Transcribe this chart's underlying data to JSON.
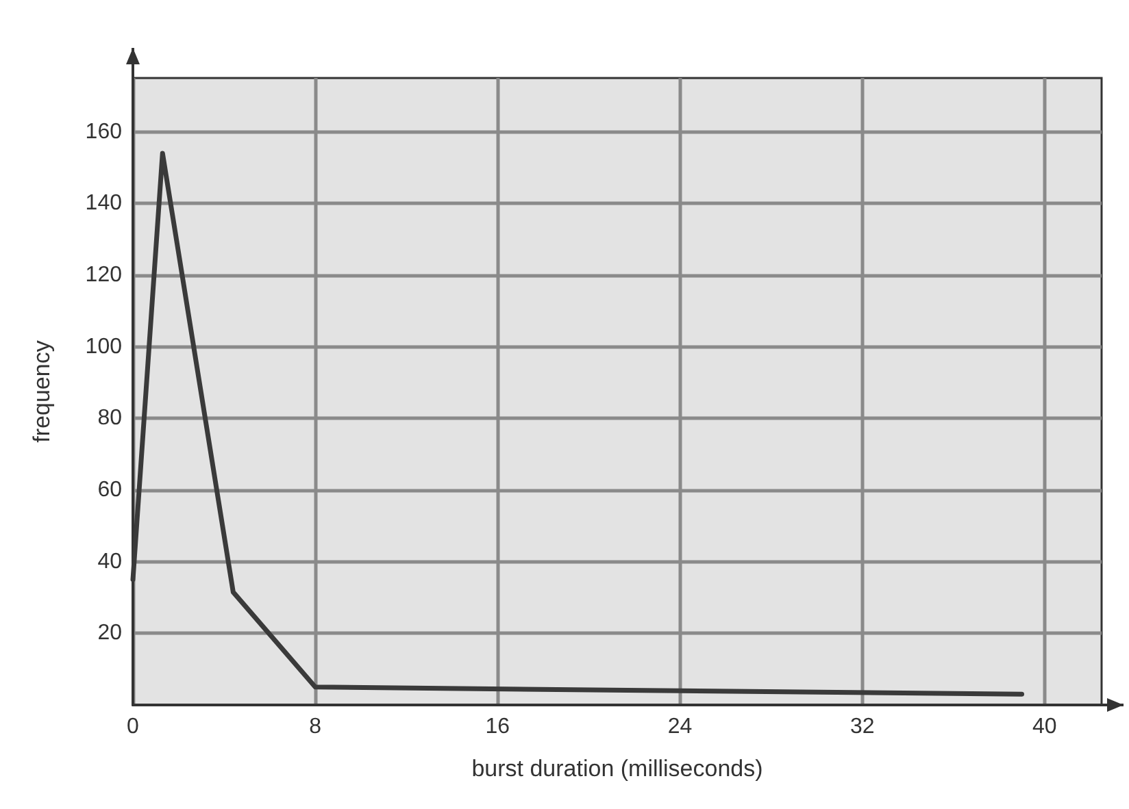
{
  "chart_data": {
    "type": "line",
    "xlabel": "burst duration (milliseconds)",
    "ylabel": "frequency",
    "series": [
      {
        "color": "#3a3a3a",
        "x": [
          0,
          1.3,
          4.4,
          8,
          39
        ],
        "values": [
          35,
          154,
          31.5,
          5,
          3
        ]
      }
    ],
    "xlim": [
      0,
      42.5
    ],
    "xticks": [
      0,
      8,
      16,
      24,
      32,
      40
    ],
    "ylim": [
      0,
      175
    ],
    "yticks": [
      20,
      40,
      60,
      80,
      100,
      120,
      140,
      160
    ],
    "grid": true,
    "marker": "none",
    "line_style": "solid"
  }
}
